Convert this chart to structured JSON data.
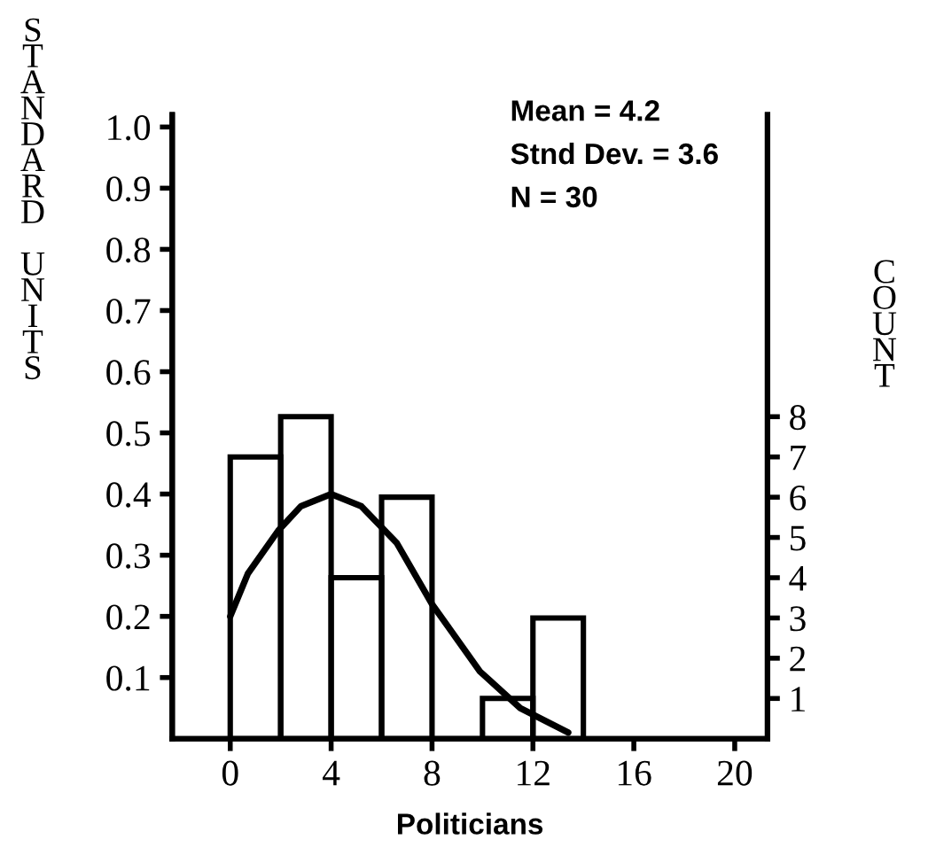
{
  "chart_data": {
    "type": "histogram",
    "xlabel": "Politicians",
    "ylabel": "STANDARD UNITS",
    "y2label": "COUNT",
    "annotations": [
      "Mean = 4.2",
      "Stnd Dev. = 3.6",
      "N = 30"
    ],
    "xlim": [
      -2.3,
      21.3
    ],
    "xticks": [
      0,
      4,
      8,
      12,
      16,
      20
    ],
    "ylim": [
      0,
      1.02
    ],
    "yticks": [
      0.1,
      0.2,
      0.3,
      0.4,
      0.5,
      0.6,
      0.7,
      0.8,
      0.9,
      {
        "value": 1.0,
        "label": "1.0"
      }
    ],
    "y2lim": [
      0,
      15.5
    ],
    "y2ticks": [
      1,
      2,
      3,
      4,
      5,
      6,
      7,
      8
    ],
    "grid": false,
    "legend": false,
    "series": [
      {
        "axis": "y2",
        "color": "#000000",
        "bins": [
          0,
          2,
          4,
          6,
          8,
          10,
          12,
          14
        ],
        "values": [
          7,
          8,
          4,
          6,
          0,
          1,
          3
        ]
      },
      {
        "type": "line",
        "color": "#000000",
        "x": [
          0,
          0.7,
          1.9,
          2.8,
          4.0,
          5.2,
          6.6,
          8.0,
          9.9,
          11.5,
          13.4
        ],
        "values": [
          0.2,
          0.27,
          0.34,
          0.38,
          0.4,
          0.38,
          0.32,
          0.22,
          0.11,
          0.05,
          0.01
        ]
      }
    ]
  }
}
